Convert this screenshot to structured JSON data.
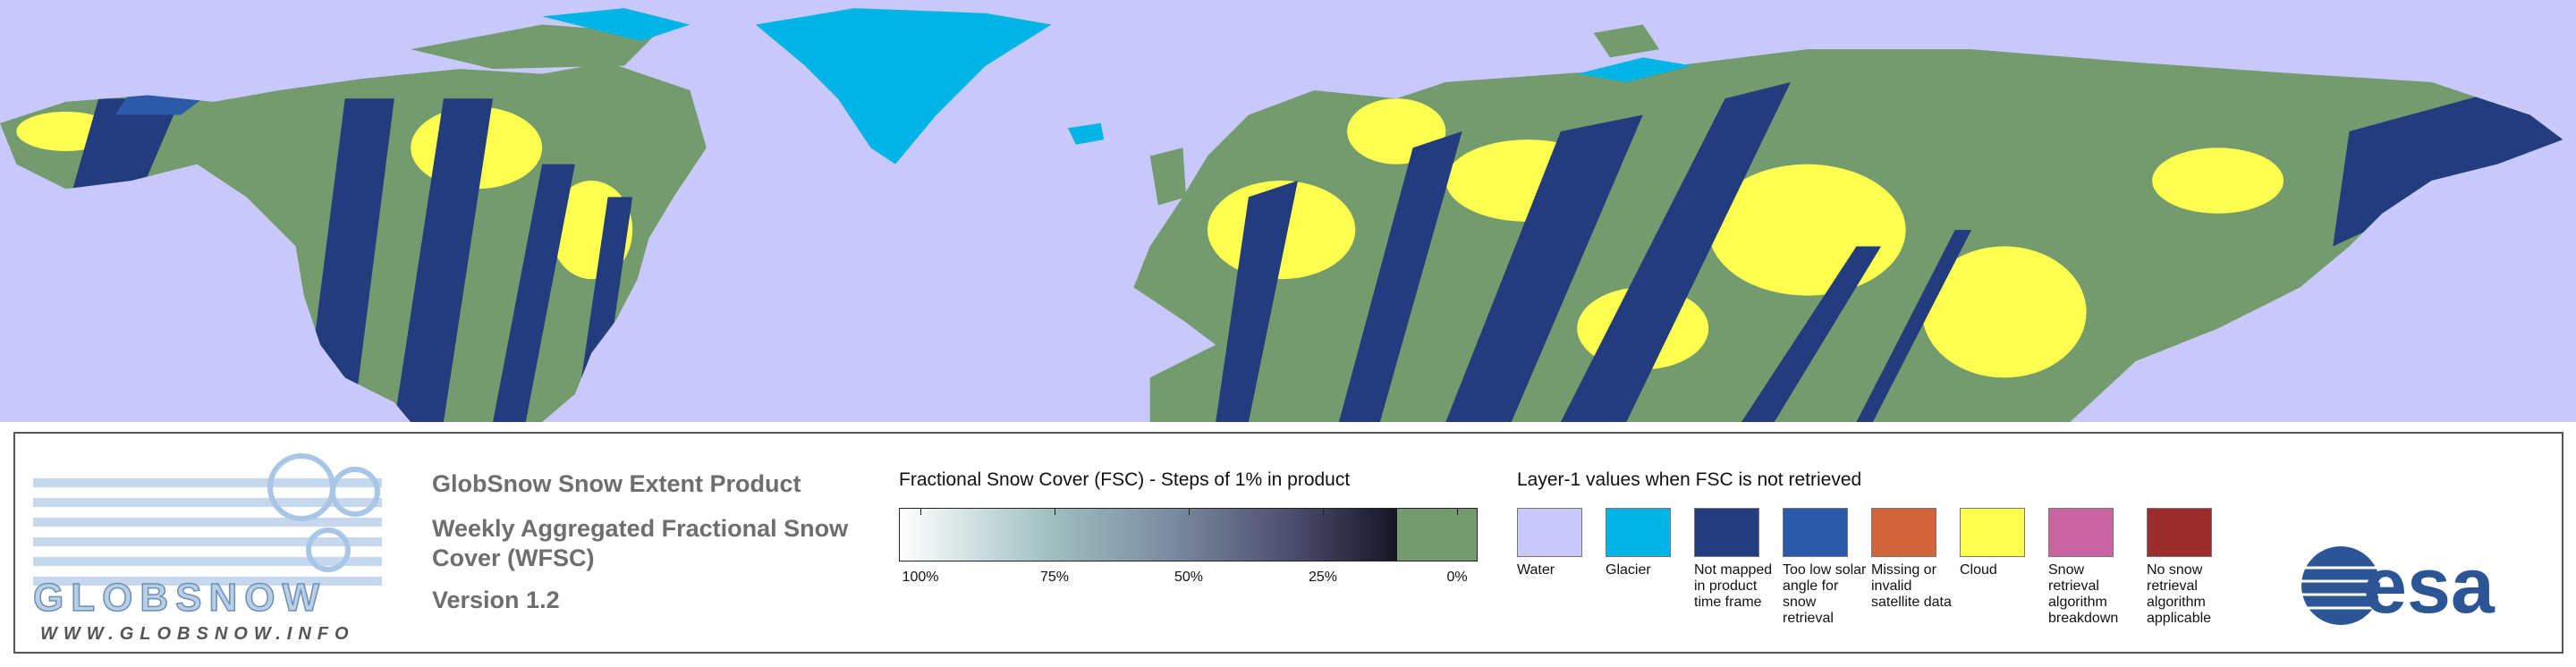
{
  "legend": {
    "product_title": "GlobSnow Snow Extent Product",
    "subtitle": "Weekly Aggregated Fractional Snow Cover (WFSC)",
    "version": "Version 1.2"
  },
  "fsc_scale": {
    "title": "Fractional Snow Cover (FSC) - Steps of 1% in product",
    "ticks": [
      {
        "value": 100,
        "label": "100%"
      },
      {
        "value": 75,
        "label": "75%"
      },
      {
        "value": 50,
        "label": "50%"
      },
      {
        "value": 25,
        "label": "25%"
      },
      {
        "value": 0,
        "label": "0%"
      }
    ]
  },
  "layer_legend": {
    "title": "Layer-1 values when FSC is not retrieved",
    "items": [
      {
        "label": "Water",
        "color": "#c8c8fa"
      },
      {
        "label": "Glacier",
        "color": "#00b4e6"
      },
      {
        "label": "Not mapped in product time frame",
        "color": "#233c7d"
      },
      {
        "label": "Too low solar angle for snow retrieval",
        "color": "#2a5aa8"
      },
      {
        "label": "Missing or invalid satellite data",
        "color": "#d2643c"
      },
      {
        "label": "Cloud",
        "color": "#ffff50"
      },
      {
        "label": "Snow retrieval algorithm breakdown",
        "color": "#c864a0"
      },
      {
        "label": "No snow retrieval algorithm applicable",
        "color": "#9b2d2d"
      }
    ]
  },
  "logo": {
    "name": "GLOBSNOW",
    "url": "WWW.GLOBSNOW.INFO"
  },
  "agency": "esa"
}
